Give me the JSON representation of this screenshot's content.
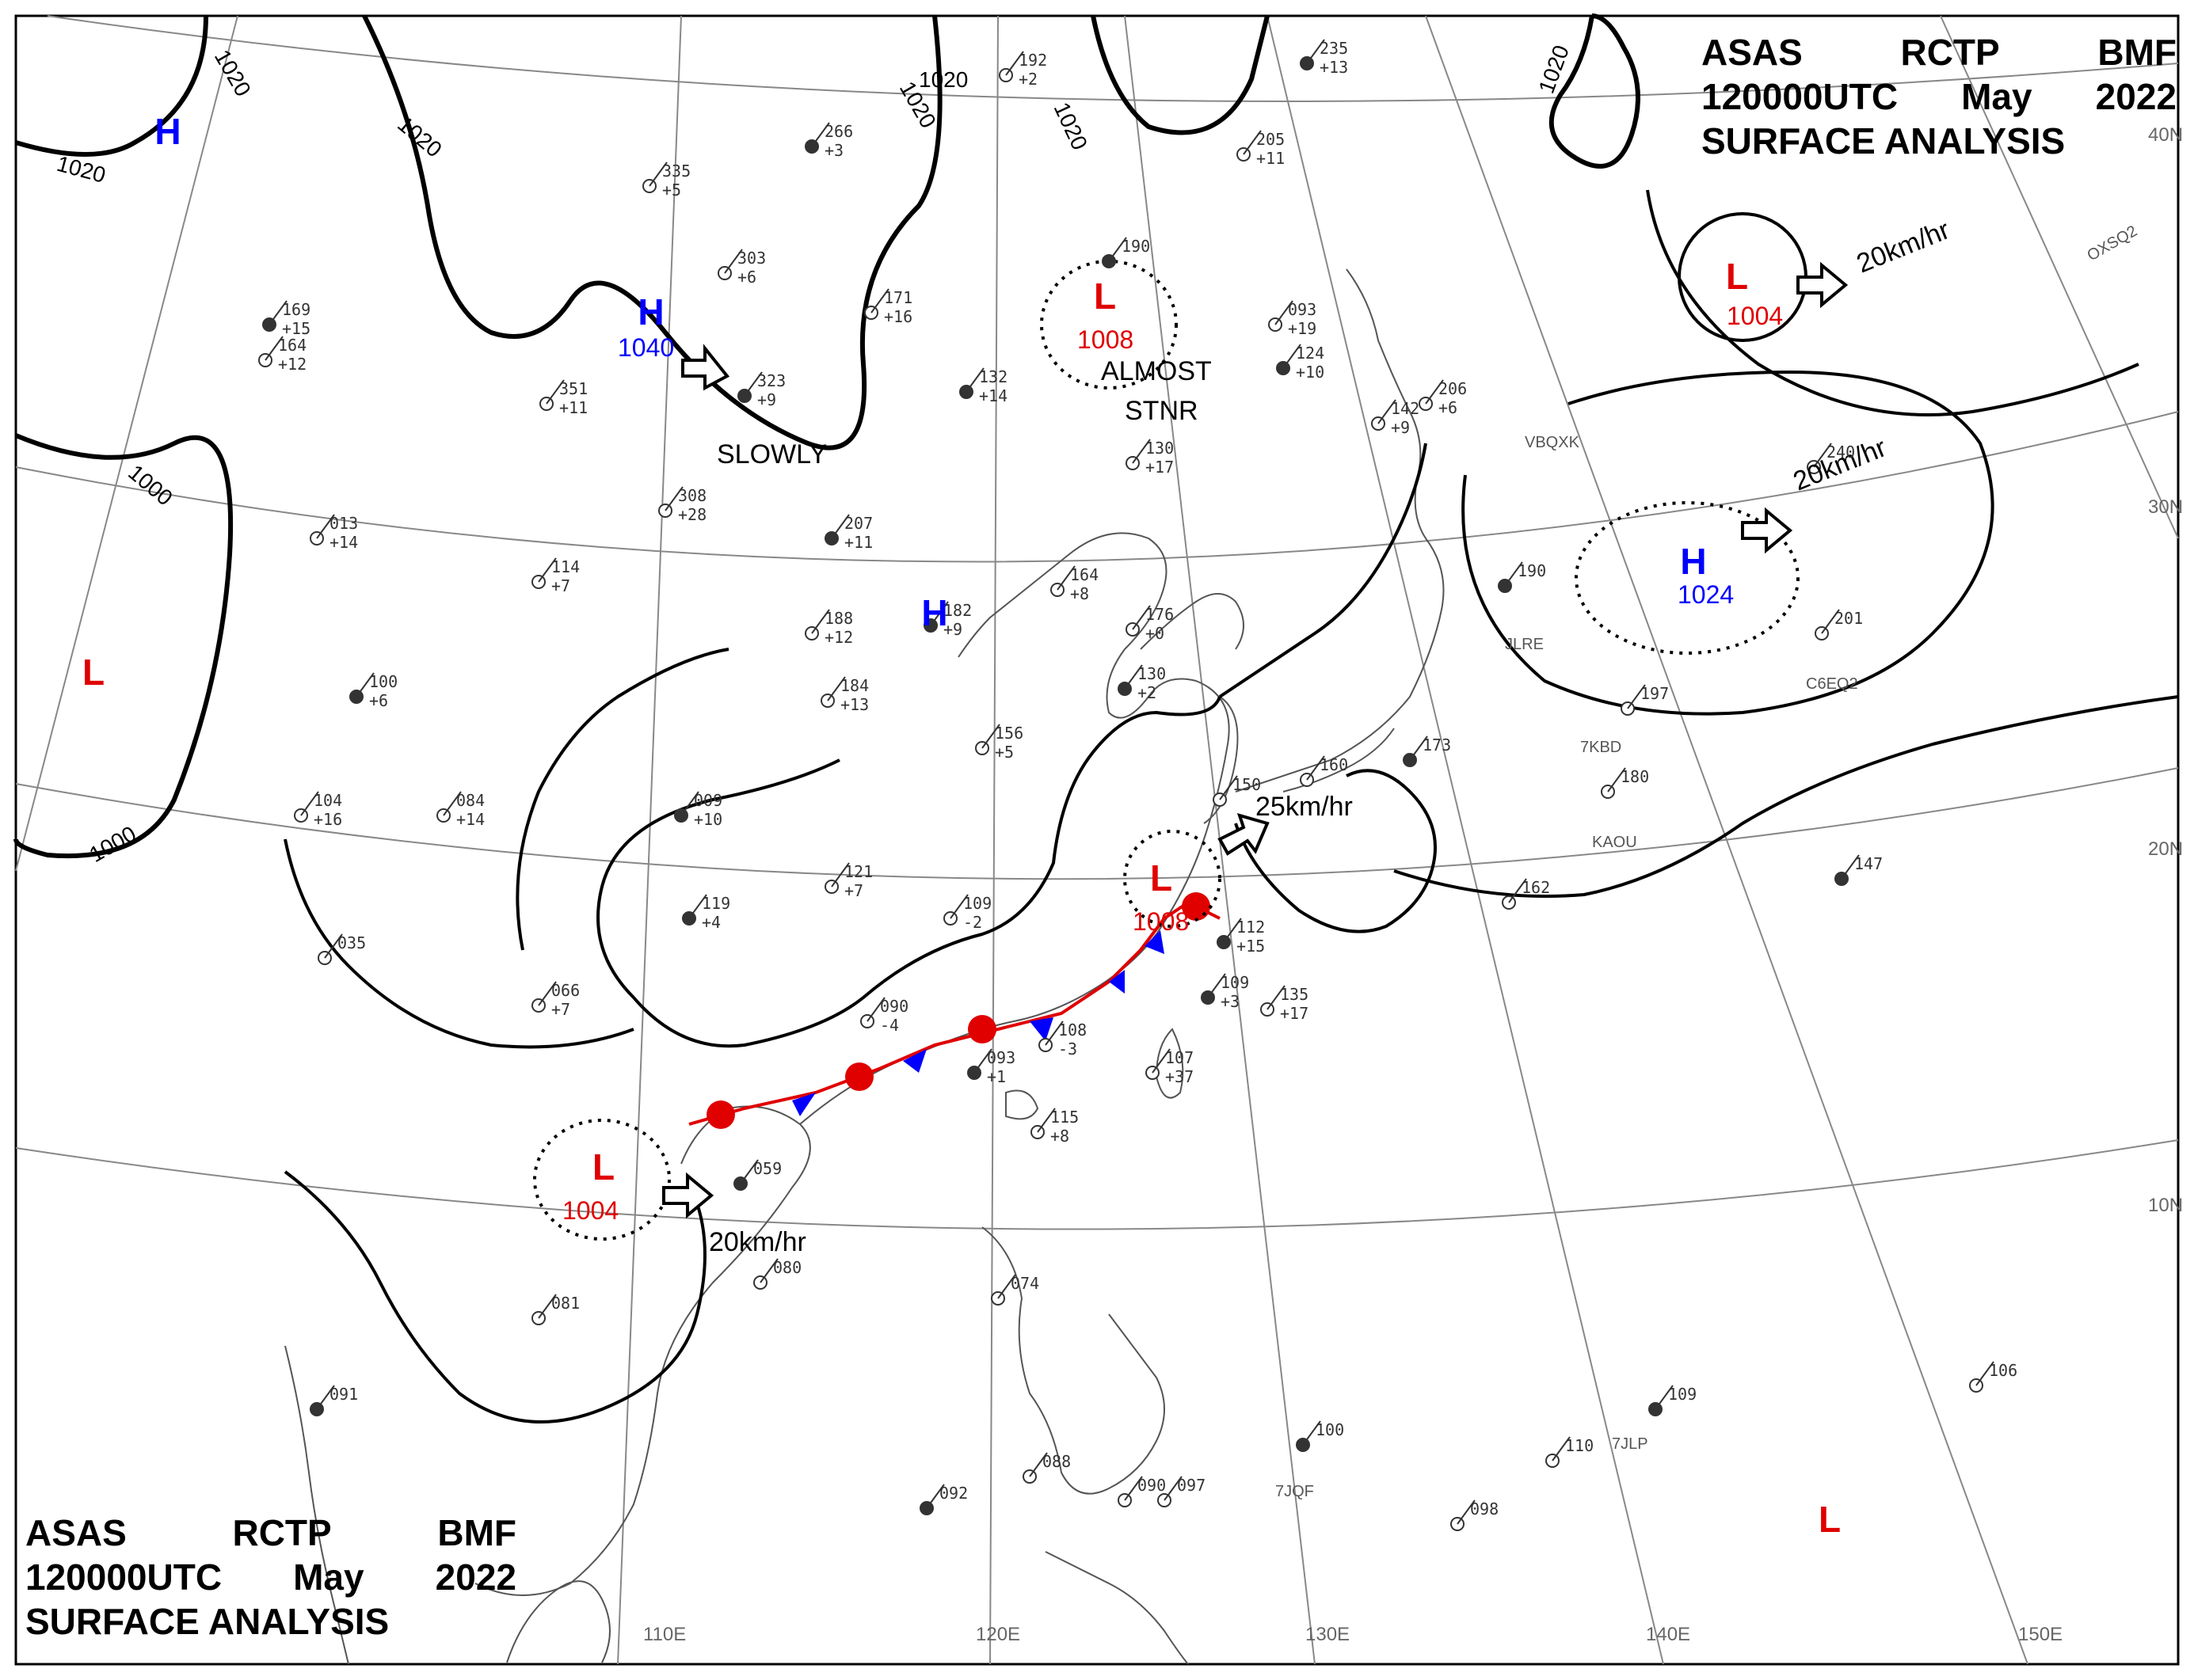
{
  "header_top": {
    "code1": "ASAS",
    "code2": "RCTP",
    "code3": "BMF",
    "time": "120000UTC",
    "month": "May",
    "year": "2022",
    "title": "SURFACE ANALYSIS"
  },
  "header_bottom": {
    "code1": "ASAS",
    "code2": "RCTP",
    "code3": "BMF",
    "time": "120000UTC",
    "month": "May",
    "year": "2022",
    "title": "SURFACE ANALYSIS"
  },
  "colors": {
    "high": "#0000ff",
    "low": "#e00000",
    "isobar": "#000000",
    "coast": "#555555",
    "grid": "#888888",
    "warm_front": "#e00000",
    "cold_front": "#0000ff"
  },
  "longitude_labels": [
    "110E",
    "120E",
    "130E",
    "140E",
    "150E"
  ],
  "latitude_labels": [
    "40N",
    "30N",
    "20N",
    "10N"
  ],
  "pressure_centers": [
    {
      "type": "H",
      "value": "1040"
    },
    {
      "type": "H",
      "value": ""
    },
    {
      "type": "H",
      "value": ""
    },
    {
      "type": "H",
      "value": "1024"
    },
    {
      "type": "L",
      "value": "1008"
    },
    {
      "type": "L",
      "value": "1004"
    },
    {
      "type": "L",
      "value": "1008"
    },
    {
      "type": "L",
      "value": "1004"
    },
    {
      "type": "L",
      "value": ""
    },
    {
      "type": "L",
      "value": ""
    }
  ],
  "motion_labels": [
    "SLOWLY",
    "ALMOST",
    "STNR",
    "20km/hr",
    "20km/hr",
    "25km/hr",
    "20km/hr"
  ],
  "isobar_labels": [
    "1020",
    "1020",
    "1020",
    "1020",
    "1020",
    "1020",
    "1020",
    "1000",
    "1000"
  ],
  "ship_callsigns": [
    "VBQXK",
    "JLRE",
    "C6EQ2",
    "7KBD",
    "KAOU",
    "7JLP",
    "7JQF",
    "OXSQ2"
  ],
  "station_values": [
    "266",
    "335",
    "303",
    "323",
    "351",
    "308",
    "207",
    "192",
    "171",
    "132",
    "130",
    "093",
    "124",
    "142",
    "206",
    "235",
    "205",
    "164",
    "169",
    "013",
    "114",
    "100",
    "084",
    "104",
    "009",
    "188",
    "184",
    "182",
    "164",
    "176",
    "130",
    "156",
    "121",
    "119",
    "109",
    "090",
    "093",
    "108",
    "115",
    "109",
    "107",
    "135",
    "112",
    "066",
    "035",
    "059",
    "080",
    "081",
    "091",
    "074",
    "088",
    "092",
    "090",
    "097",
    "100",
    "098",
    "110",
    "109",
    "106",
    "240",
    "190",
    "197",
    "201",
    "173",
    "180",
    "162",
    "147",
    "160",
    "150",
    "190"
  ],
  "station_tendencies": [
    "+3",
    "+5",
    "+6",
    "+9",
    "+11",
    "+28",
    "+11",
    "+2",
    "+16",
    "+14",
    "+17",
    "+19",
    "+10",
    "+9",
    "+6",
    "+13",
    "+11",
    "+12",
    "+15",
    "+14",
    "+7",
    "+6",
    "+14",
    "+16",
    "+10",
    "+12",
    "+13",
    "+9",
    "+8",
    "+0",
    "+2",
    "+5",
    "+7",
    "+4",
    "-2",
    "-4",
    "+1",
    "-3",
    "+8",
    "+3",
    "+37",
    "+17",
    "+15",
    "+7"
  ]
}
